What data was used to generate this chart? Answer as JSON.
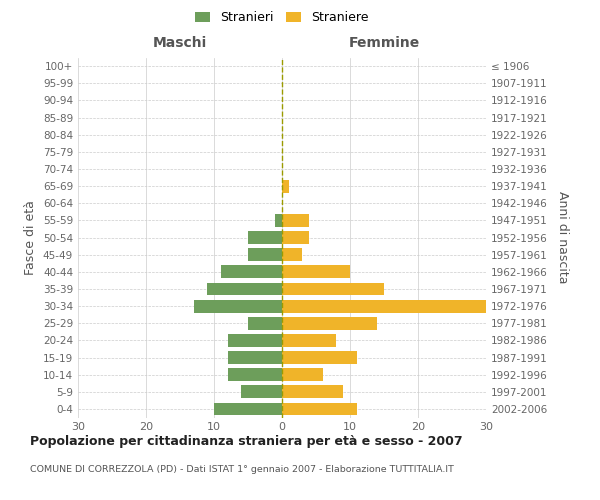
{
  "age_groups": [
    "100+",
    "95-99",
    "90-94",
    "85-89",
    "80-84",
    "75-79",
    "70-74",
    "65-69",
    "60-64",
    "55-59",
    "50-54",
    "45-49",
    "40-44",
    "35-39",
    "30-34",
    "25-29",
    "20-24",
    "15-19",
    "10-14",
    "5-9",
    "0-4"
  ],
  "birth_years": [
    "≤ 1906",
    "1907-1911",
    "1912-1916",
    "1917-1921",
    "1922-1926",
    "1927-1931",
    "1932-1936",
    "1937-1941",
    "1942-1946",
    "1947-1951",
    "1952-1956",
    "1957-1961",
    "1962-1966",
    "1967-1971",
    "1972-1976",
    "1977-1981",
    "1982-1986",
    "1987-1991",
    "1992-1996",
    "1997-2001",
    "2002-2006"
  ],
  "maschi": [
    0,
    0,
    0,
    0,
    0,
    0,
    0,
    0,
    0,
    1,
    5,
    5,
    9,
    11,
    13,
    5,
    8,
    8,
    8,
    6,
    10
  ],
  "femmine": [
    0,
    0,
    0,
    0,
    0,
    0,
    0,
    1,
    0,
    4,
    4,
    3,
    10,
    15,
    30,
    14,
    8,
    11,
    6,
    9,
    11
  ],
  "male_color": "#6d9e5b",
  "female_color": "#f0b429",
  "dashed_line_color": "#9b9b00",
  "grid_color": "#cccccc",
  "xlim": 30,
  "title": "Popolazione per cittadinanza straniera per età e sesso - 2007",
  "subtitle": "COMUNE DI CORREZZOLA (PD) - Dati ISTAT 1° gennaio 2007 - Elaborazione TUTTITALIA.IT",
  "ylabel_left": "Fasce di età",
  "ylabel_right": "Anni di nascita",
  "label_maschi": "Maschi",
  "label_femmine": "Femmine",
  "legend_stranieri": "Stranieri",
  "legend_straniere": "Straniere",
  "bg_color": "#ffffff"
}
